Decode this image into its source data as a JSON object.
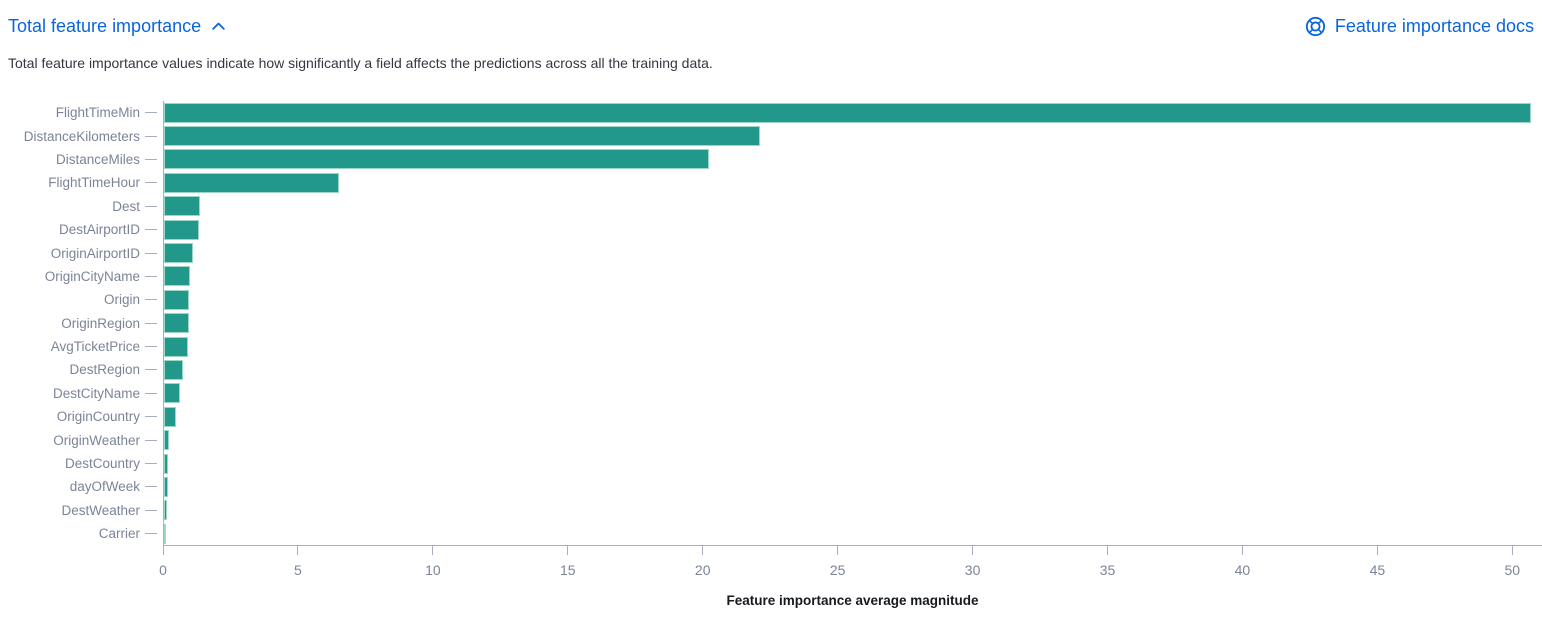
{
  "header": {
    "title": "Total feature importance",
    "docs_link_label": "Feature importance docs"
  },
  "description": "Total feature importance values indicate how significantly a field affects the predictions across all the training data.",
  "colors": {
    "bar_fill": "#219889",
    "bar_edge": "#9bd6c9",
    "link_blue": "#0b64dd",
    "axis_line": "#a6aec0",
    "axis_label_text": "#7b8497",
    "axis_title_text": "#16191e",
    "description_text": "#343741"
  },
  "icons": {
    "collapse": "chevron-up-icon",
    "docs": "help-lifebuoy-icon"
  },
  "chart_data": {
    "type": "bar",
    "orientation": "horizontal",
    "title": "",
    "xlabel": "Feature importance average magnitude",
    "ylabel": "",
    "categories": [
      "FlightTimeMin",
      "DistanceKilometers",
      "DistanceMiles",
      "FlightTimeHour",
      "Dest",
      "DestAirportID",
      "OriginAirportID",
      "OriginCityName",
      "Origin",
      "OriginRegion",
      "AvgTicketPrice",
      "DestRegion",
      "DestCityName",
      "OriginCountry",
      "OriginWeather",
      "DestCountry",
      "dayOfWeek",
      "DestWeather",
      "Carrier"
    ],
    "values": [
      50.7,
      22.1,
      20.2,
      6.5,
      1.33,
      1.3,
      1.06,
      0.97,
      0.94,
      0.93,
      0.88,
      0.7,
      0.6,
      0.44,
      0.19,
      0.15,
      0.15,
      0.11,
      0.04
    ],
    "x_ticks": [
      0,
      5,
      10,
      15,
      20,
      25,
      30,
      35,
      40,
      45,
      50
    ],
    "xlim": [
      0,
      51.1
    ],
    "grid": false,
    "legend": "none"
  }
}
